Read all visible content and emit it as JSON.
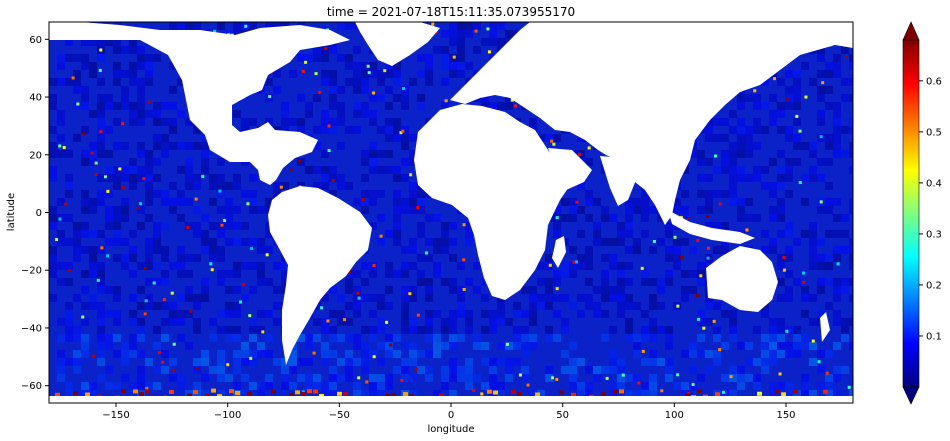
{
  "chart_data": {
    "type": "heatmap",
    "title": "time = 2021-07-18T15:11:35.073955170",
    "xlabel": "longitude",
    "ylabel": "latitude",
    "xlim": [
      -180,
      180
    ],
    "ylim": [
      -66,
      66
    ],
    "xticks": [
      -150,
      -100,
      -50,
      0,
      50,
      100,
      150
    ],
    "xtick_labels": [
      "−150",
      "−100",
      "−50",
      "0",
      "50",
      "100",
      "150"
    ],
    "yticks": [
      -60,
      -40,
      -20,
      0,
      20,
      40,
      60
    ],
    "ytick_labels": [
      "−60",
      "−40",
      "−20",
      "0",
      "20",
      "40",
      "60"
    ],
    "colorbar": {
      "colormap": "jet",
      "vmin": 0.0,
      "vmax": 0.68,
      "extend": "both",
      "ticks": [
        0.1,
        0.2,
        0.3,
        0.4,
        0.5,
        0.6
      ],
      "tick_labels": [
        "0.1",
        "0.2",
        "0.3",
        "0.4",
        "0.5",
        "0.6"
      ]
    },
    "field": {
      "typical_open_ocean": 0.05,
      "southern_ocean": 0.12,
      "sea_ice_edge": 0.6,
      "land_value": null
    },
    "grid": false
  }
}
